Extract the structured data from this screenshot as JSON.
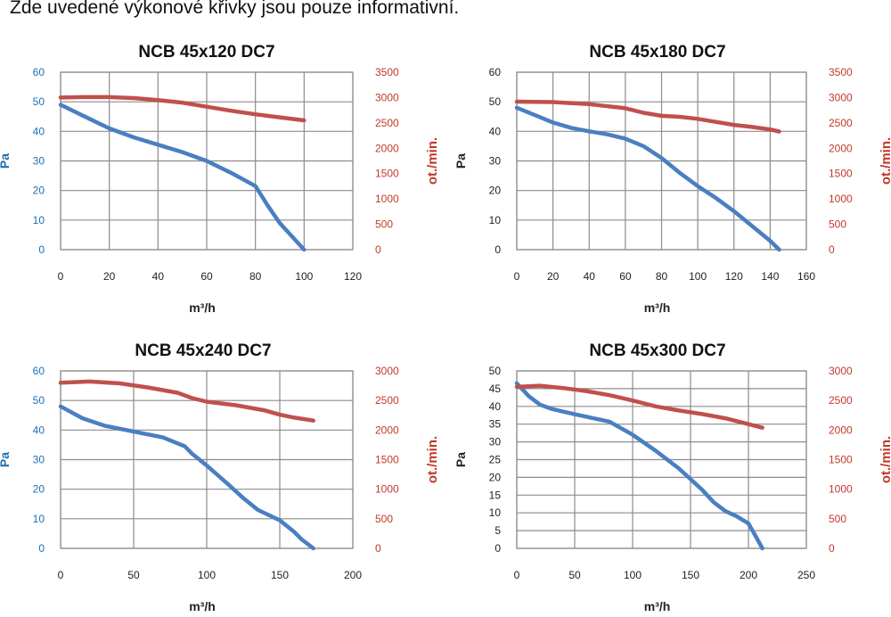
{
  "header": {
    "note": "Zde uvedené výkonové křivky jsou pouze informativní."
  },
  "colors": {
    "pa_series": "#4a7fc1",
    "rpm_series": "#c0504d",
    "left_axis": "#1f6fb0",
    "right_axis": "#c0392b",
    "grid": "#8c8c8c"
  },
  "chart_data": [
    {
      "type": "line",
      "title": "NCB 45x120 DC7",
      "xlabel": "m³/h",
      "ylabel": "Pa",
      "y2label": "ot./min.",
      "xlim": [
        0,
        120
      ],
      "x_ticks": [
        0,
        20,
        40,
        60,
        80,
        100,
        120
      ],
      "ylim": [
        0,
        60
      ],
      "y_ticks": [
        0,
        10,
        20,
        30,
        40,
        50,
        60
      ],
      "y2lim": [
        0,
        3500
      ],
      "y2_ticks": [
        0,
        500,
        1000,
        1500,
        2000,
        2500,
        3000,
        3500
      ],
      "grid": true,
      "series": [
        {
          "axis": "left",
          "x": [
            0,
            10,
            20,
            30,
            40,
            50,
            60,
            70,
            80,
            85,
            90,
            95,
            100
          ],
          "values": [
            49,
            45,
            41,
            38,
            35.5,
            33,
            30,
            26,
            21.5,
            15,
            9,
            4.5,
            0
          ]
        },
        {
          "axis": "right",
          "x": [
            0,
            10,
            20,
            30,
            40,
            50,
            60,
            70,
            80,
            90,
            100
          ],
          "values": [
            3000,
            3010,
            3010,
            2990,
            2950,
            2900,
            2820,
            2740,
            2670,
            2610,
            2550
          ]
        }
      ]
    },
    {
      "type": "line",
      "title": "NCB 45x180 DC7",
      "xlabel": "m³/h",
      "ylabel": "Pa",
      "y2label": "ot./min.",
      "xlim": [
        0,
        160
      ],
      "x_ticks": [
        0,
        20,
        40,
        60,
        80,
        100,
        120,
        140,
        160
      ],
      "ylim": [
        0,
        60
      ],
      "y_ticks": [
        0,
        10,
        20,
        30,
        40,
        50,
        60
      ],
      "y2lim": [
        0,
        3500
      ],
      "y2_ticks": [
        0,
        500,
        1000,
        1500,
        2000,
        2500,
        3000,
        3500
      ],
      "grid": true,
      "series": [
        {
          "axis": "left",
          "x": [
            0,
            10,
            20,
            30,
            40,
            50,
            60,
            70,
            80,
            90,
            100,
            110,
            120,
            130,
            140,
            145
          ],
          "values": [
            48,
            45.5,
            43,
            41.2,
            40,
            39,
            37.5,
            35,
            31,
            26,
            21.5,
            17.5,
            13,
            8,
            3,
            0
          ]
        },
        {
          "axis": "right",
          "x": [
            0,
            20,
            40,
            60,
            70,
            80,
            90,
            100,
            110,
            120,
            130,
            140,
            145
          ],
          "values": [
            2920,
            2910,
            2870,
            2790,
            2700,
            2640,
            2620,
            2580,
            2520,
            2460,
            2420,
            2370,
            2330
          ]
        }
      ]
    },
    {
      "type": "line",
      "title": "NCB 45x240 DC7",
      "xlabel": "m³/h",
      "ylabel": "Pa",
      "y2label": "ot./min.",
      "xlim": [
        0,
        200
      ],
      "x_ticks": [
        0,
        50,
        100,
        150,
        200
      ],
      "ylim": [
        0,
        60
      ],
      "y_ticks": [
        0,
        10,
        20,
        30,
        40,
        50,
        60
      ],
      "y2lim": [
        0,
        3000
      ],
      "y2_ticks": [
        0,
        500,
        1000,
        1500,
        2000,
        2500,
        3000
      ],
      "grid": true,
      "series": [
        {
          "axis": "left",
          "x": [
            0,
            15,
            30,
            50,
            70,
            85,
            90,
            100,
            115,
            125,
            135,
            150,
            160,
            165,
            173
          ],
          "values": [
            48,
            44,
            41.5,
            39.5,
            37.5,
            34.5,
            32,
            28,
            21.5,
            17,
            13,
            9.5,
            5.5,
            3,
            0
          ]
        },
        {
          "axis": "right",
          "x": [
            0,
            20,
            40,
            60,
            80,
            90,
            100,
            120,
            140,
            150,
            160,
            173
          ],
          "values": [
            2800,
            2820,
            2790,
            2720,
            2630,
            2540,
            2480,
            2420,
            2330,
            2260,
            2210,
            2160
          ]
        }
      ]
    },
    {
      "type": "line",
      "title": "NCB 45x300 DC7",
      "xlabel": "m³/h",
      "ylabel": "Pa",
      "y2label": "ot./min.",
      "xlim": [
        0,
        250
      ],
      "x_ticks": [
        0,
        50,
        100,
        150,
        200,
        250
      ],
      "ylim": [
        0,
        50
      ],
      "y_ticks": [
        0,
        5,
        10,
        15,
        20,
        25,
        30,
        35,
        40,
        45,
        50
      ],
      "y2lim": [
        0,
        3000
      ],
      "y2_ticks": [
        0,
        500,
        1000,
        1500,
        2000,
        2500,
        3000
      ],
      "grid": true,
      "series": [
        {
          "axis": "left",
          "x": [
            0,
            10,
            20,
            30,
            50,
            80,
            100,
            120,
            140,
            150,
            160,
            170,
            180,
            190,
            200,
            207,
            212
          ],
          "values": [
            46.5,
            43,
            40.5,
            39.3,
            37.8,
            35.7,
            32,
            27.5,
            22.5,
            19.5,
            16.5,
            13,
            10.5,
            9,
            7,
            3,
            0
          ]
        },
        {
          "axis": "right",
          "x": [
            0,
            20,
            40,
            60,
            80,
            100,
            120,
            140,
            160,
            180,
            200,
            212
          ],
          "values": [
            2730,
            2750,
            2710,
            2660,
            2590,
            2500,
            2400,
            2330,
            2270,
            2200,
            2100,
            2040
          ]
        }
      ]
    }
  ]
}
